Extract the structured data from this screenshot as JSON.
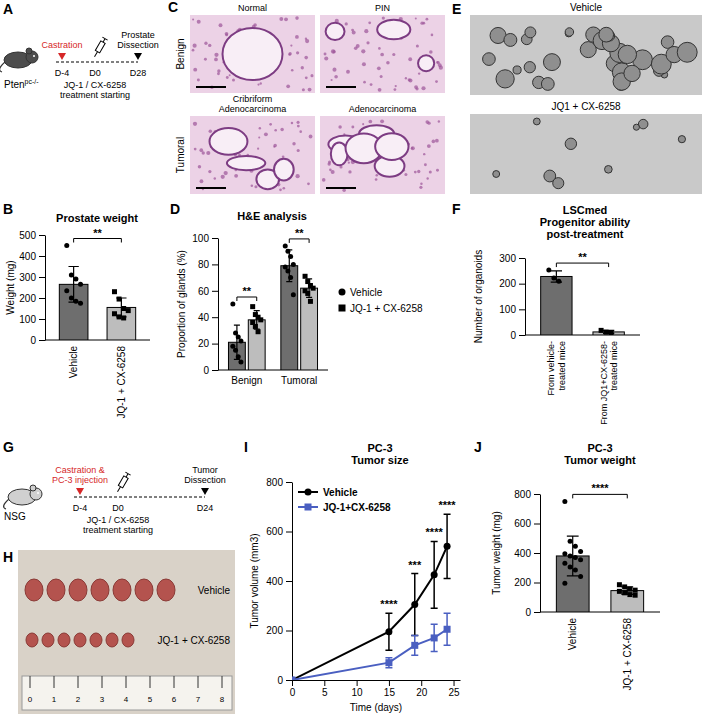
{
  "chart_data": [
    {
      "panel": "B",
      "type": "bar",
      "title": "Prostate weight",
      "y_label": "Weight (mg)",
      "categories": [
        "Vehicle",
        "JQ-1 + CX-6258"
      ],
      "values": [
        265,
        155
      ],
      "errors": [
        85,
        45
      ],
      "points": [
        [
          450,
          310,
          290,
          265,
          235,
          200,
          185,
          175
        ],
        [
          230,
          195,
          150,
          140,
          125,
          110,
          105
        ]
      ],
      "colors": [
        "#6e6e6e",
        "#bdbdbd"
      ],
      "ylim": [
        0,
        500
      ],
      "yticks": [
        0,
        100,
        200,
        300,
        400,
        500
      ],
      "annotations": [
        "**"
      ]
    },
    {
      "panel": "D",
      "type": "bar",
      "title": "H&E analysis",
      "y_label": "Proportion of glands (%)",
      "categories": [
        "Benign",
        "Tumoral"
      ],
      "series": [
        {
          "name": "Vehicle",
          "color": "#6e6e6e",
          "marker": "circle",
          "values": [
            21,
            79
          ],
          "errors": [
            13,
            12
          ],
          "points": [
            [
              50,
              28,
              25,
              22,
              18,
              15,
              10,
              6
            ],
            [
              94,
              90,
              86,
              80,
              78,
              75,
              70,
              57
            ]
          ]
        },
        {
          "name": "JQ-1 + CX-6258",
          "color": "#bdbdbd",
          "marker": "square",
          "values": [
            38,
            62
          ],
          "errors": [
            7,
            7
          ],
          "points": [
            [
              48,
              42,
              40,
              38,
              36,
              33,
              29
            ],
            [
              71,
              67,
              64,
              62,
              60,
              58,
              52
            ]
          ]
        }
      ],
      "legend": "right",
      "ylim": [
        0,
        100
      ],
      "yticks": [
        0,
        20,
        40,
        60,
        80,
        100
      ],
      "annotations": [
        "**",
        "**"
      ]
    },
    {
      "panel": "F",
      "type": "bar",
      "title": "LSCmed",
      "subtitle": "Progenitor ability post-treatment",
      "y_label": "Number of organoids",
      "categories": [
        "From vehicle-treated mice",
        "From JQ1+CX-6258-treated mice"
      ],
      "values": [
        228,
        12
      ],
      "errors": [
        22,
        6
      ],
      "points": [
        [
          253,
          222,
          209
        ],
        [
          18,
          11,
          7
        ]
      ],
      "colors": [
        "#6e6e6e",
        "#bdbdbd"
      ],
      "ylim": [
        0,
        300
      ],
      "yticks": [
        0,
        100,
        200,
        300
      ],
      "annotations": [
        "**"
      ]
    },
    {
      "panel": "I",
      "type": "line",
      "title": "PC-3",
      "subtitle": "Tumor size",
      "x_label": "Time (days)",
      "y_label": "Tumor volume (mm3)",
      "x": [
        0,
        15,
        19,
        22,
        24
      ],
      "series": [
        {
          "name": "Vehicle",
          "color": "#000000",
          "marker": "circle",
          "values": [
            0,
            195,
            305,
            425,
            540
          ],
          "errors": [
            0,
            75,
            125,
            135,
            130
          ]
        },
        {
          "name": "JQ-1+CX-6258",
          "color": "#4a5fc1",
          "marker": "square",
          "values": [
            0,
            70,
            140,
            170,
            205
          ],
          "errors": [
            0,
            20,
            40,
            55,
            65
          ]
        }
      ],
      "xlim": [
        0,
        26
      ],
      "xticks": [
        0,
        5,
        10,
        15,
        20,
        25
      ],
      "ylim": [
        0,
        800
      ],
      "yticks": [
        0,
        200,
        400,
        600,
        800
      ],
      "legend": "top-left",
      "annotations": {
        "x": [
          15,
          19,
          22,
          24
        ],
        "labels": [
          "****",
          "***",
          "****",
          "****"
        ]
      }
    },
    {
      "panel": "J",
      "type": "bar",
      "title": "PC-3",
      "subtitle": "Tumor weight",
      "y_label": "Tumor weight (mg)",
      "categories": [
        "Vehicle",
        "JQ-1 + CX-6258"
      ],
      "values": [
        380,
        145
      ],
      "errors": [
        135,
        25
      ],
      "points": [
        [
          750,
          480,
          445,
          410,
          395,
          380,
          370,
          355,
          330,
          305,
          285,
          240,
          195
        ],
        [
          185,
          170,
          155,
          148,
          140,
          130,
          118,
          114
        ]
      ],
      "colors": [
        "#6e6e6e",
        "#bdbdbd"
      ],
      "ylim": [
        0,
        800
      ],
      "yticks": [
        0,
        200,
        400,
        600,
        800
      ],
      "annotations": [
        "****"
      ]
    }
  ],
  "schematics": [
    {
      "panel": "A",
      "subject": "Pten",
      "subject_sup": "pc-/-",
      "events": [
        {
          "label": "Castration",
          "day": "D-4"
        },
        {
          "label": "JQ-1 / CX-6258 treatment starting",
          "day": "D0"
        },
        {
          "label": "Prostate Dissection",
          "day": "D28"
        }
      ]
    },
    {
      "panel": "G",
      "subject": "NSG",
      "events": [
        {
          "label": "Castration & PC-3 injection",
          "day": "D-4"
        },
        {
          "label": "JQ-1 / CX-6258 treatment starting",
          "day": "D0"
        },
        {
          "label": "Tumor Dissection",
          "day": "D24"
        }
      ]
    }
  ],
  "images": [
    {
      "panel": "C",
      "rows": [
        "Benign",
        "Tumoral"
      ],
      "tiles": [
        [
          "Normal",
          "PIN"
        ],
        [
          "Cribriform Adenocarcinoma",
          "Adenocarcinoma"
        ]
      ]
    },
    {
      "panel": "E",
      "tiles": [
        "Vehicle",
        "JQ1 + CX-6258"
      ]
    },
    {
      "panel": "H",
      "rows": [
        "Vehicle",
        "JQ-1 + CX-6258"
      ],
      "ruler": [
        0,
        1,
        2,
        3,
        4,
        5,
        6,
        7,
        8
      ]
    }
  ]
}
